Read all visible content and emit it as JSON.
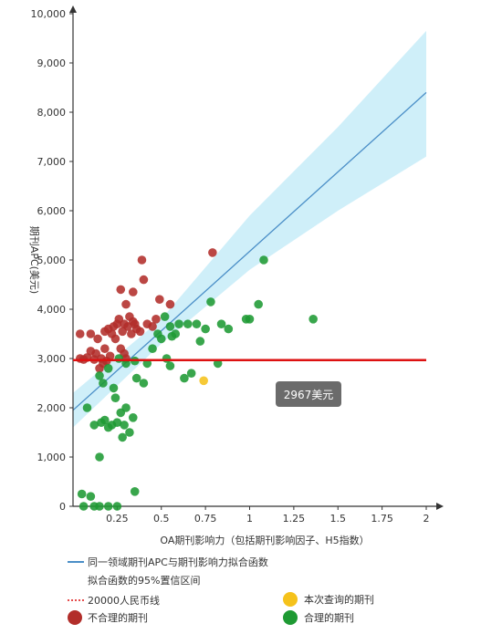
{
  "chart_data": {
    "type": "scatter",
    "title": "",
    "xlabel": "OA期刊影响力（包括期刊影响因子、H5指数）",
    "ylabel": "期刊APC(美元)",
    "xlim": [
      0,
      2.05
    ],
    "ylim": [
      0,
      10000
    ],
    "x_ticks": [
      0.25,
      0.5,
      0.75,
      1,
      1.25,
      1.5,
      1.75,
      2
    ],
    "x_tick_labels": [
      "0.25",
      "0.5",
      "0.75",
      "1",
      "1.25",
      "1.5",
      "1.75",
      "2"
    ],
    "y_ticks": [
      0,
      1000,
      2000,
      3000,
      4000,
      5000,
      6000,
      7000,
      8000,
      9000,
      10000
    ],
    "y_tick_labels": [
      "0",
      "1,000",
      "2,000",
      "3,000",
      "4,000",
      "5,000",
      "6,000",
      "7,000",
      "8,000",
      "9,000",
      "10,000"
    ],
    "grid": false,
    "legend_position": "bottom",
    "fit_line": {
      "name": "同一领域期刊APC与期刊影响力拟合函数",
      "color": "#4a8ec7",
      "x": [
        0,
        2
      ],
      "y": [
        1950,
        8400
      ]
    },
    "confidence_band": {
      "name": "拟合函数的95%置信区间",
      "color": "#bfe9f7",
      "x": [
        0,
        0.5,
        1,
        1.5,
        2
      ],
      "lower": [
        1600,
        3300,
        4800,
        6000,
        7100
      ],
      "upper": [
        2300,
        3800,
        5900,
        7700,
        9650
      ]
    },
    "reference_line": {
      "name": "20000人民币线",
      "color": "#dd1111",
      "y": 2967,
      "x": [
        0,
        2
      ]
    },
    "tooltip": {
      "label": "2967美元",
      "bg_color": "#6b6b6b"
    },
    "series": [
      {
        "name": "不合理的期刊",
        "color": "#b22e2a",
        "points": [
          [
            0.04,
            3500
          ],
          [
            0.04,
            3000
          ],
          [
            0.06,
            2980
          ],
          [
            0.08,
            3020
          ],
          [
            0.1,
            3150
          ],
          [
            0.1,
            3500
          ],
          [
            0.12,
            2980
          ],
          [
            0.13,
            3100
          ],
          [
            0.14,
            3400
          ],
          [
            0.15,
            2800
          ],
          [
            0.16,
            3000
          ],
          [
            0.17,
            2900
          ],
          [
            0.18,
            3550
          ],
          [
            0.18,
            3200
          ],
          [
            0.19,
            2950
          ],
          [
            0.2,
            3600
          ],
          [
            0.21,
            3050
          ],
          [
            0.22,
            3500
          ],
          [
            0.23,
            3650
          ],
          [
            0.24,
            3400
          ],
          [
            0.25,
            3700
          ],
          [
            0.26,
            3800
          ],
          [
            0.27,
            3200
          ],
          [
            0.27,
            4400
          ],
          [
            0.28,
            3550
          ],
          [
            0.29,
            3100
          ],
          [
            0.29,
            3700
          ],
          [
            0.3,
            4100
          ],
          [
            0.3,
            3000
          ],
          [
            0.31,
            3650
          ],
          [
            0.32,
            3850
          ],
          [
            0.33,
            3500
          ],
          [
            0.34,
            3750
          ],
          [
            0.34,
            4350
          ],
          [
            0.35,
            3700
          ],
          [
            0.36,
            3600
          ],
          [
            0.38,
            3550
          ],
          [
            0.39,
            5000
          ],
          [
            0.4,
            4600
          ],
          [
            0.42,
            3700
          ],
          [
            0.45,
            3650
          ],
          [
            0.47,
            3800
          ],
          [
            0.49,
            4200
          ],
          [
            0.55,
            4100
          ],
          [
            0.79,
            5150
          ]
        ]
      },
      {
        "name": "合理的期刊",
        "color": "#1e9a33",
        "points": [
          [
            0.05,
            250
          ],
          [
            0.06,
            0
          ],
          [
            0.1,
            200
          ],
          [
            0.12,
            0
          ],
          [
            0.15,
            0
          ],
          [
            0.2,
            0
          ],
          [
            0.25,
            0
          ],
          [
            0.08,
            2000
          ],
          [
            0.12,
            1650
          ],
          [
            0.15,
            1000
          ],
          [
            0.16,
            1700
          ],
          [
            0.18,
            1750
          ],
          [
            0.2,
            1600
          ],
          [
            0.22,
            1650
          ],
          [
            0.24,
            2200
          ],
          [
            0.25,
            1700
          ],
          [
            0.27,
            1900
          ],
          [
            0.28,
            1400
          ],
          [
            0.29,
            1650
          ],
          [
            0.3,
            2000
          ],
          [
            0.32,
            1500
          ],
          [
            0.34,
            1800
          ],
          [
            0.35,
            300
          ],
          [
            0.15,
            2650
          ],
          [
            0.17,
            2500
          ],
          [
            0.2,
            2800
          ],
          [
            0.23,
            2400
          ],
          [
            0.26,
            3000
          ],
          [
            0.3,
            2900
          ],
          [
            0.35,
            2950
          ],
          [
            0.36,
            2600
          ],
          [
            0.4,
            2500
          ],
          [
            0.42,
            2900
          ],
          [
            0.45,
            3200
          ],
          [
            0.48,
            3500
          ],
          [
            0.5,
            3400
          ],
          [
            0.52,
            3850
          ],
          [
            0.53,
            3000
          ],
          [
            0.55,
            2850
          ],
          [
            0.55,
            3650
          ],
          [
            0.56,
            3450
          ],
          [
            0.58,
            3500
          ],
          [
            0.6,
            3700
          ],
          [
            0.63,
            2600
          ],
          [
            0.65,
            3700
          ],
          [
            0.67,
            2700
          ],
          [
            0.7,
            3700
          ],
          [
            0.72,
            3350
          ],
          [
            0.75,
            3600
          ],
          [
            0.78,
            4150
          ],
          [
            0.82,
            2900
          ],
          [
            0.84,
            3700
          ],
          [
            0.88,
            3600
          ],
          [
            0.98,
            3800
          ],
          [
            1,
            3800
          ],
          [
            1.05,
            4100
          ],
          [
            1.08,
            5000
          ],
          [
            1.36,
            3800
          ]
        ]
      },
      {
        "name": "本次查询的期刊",
        "color": "#f5c21b",
        "points": [
          [
            0.74,
            2550
          ]
        ]
      }
    ]
  }
}
